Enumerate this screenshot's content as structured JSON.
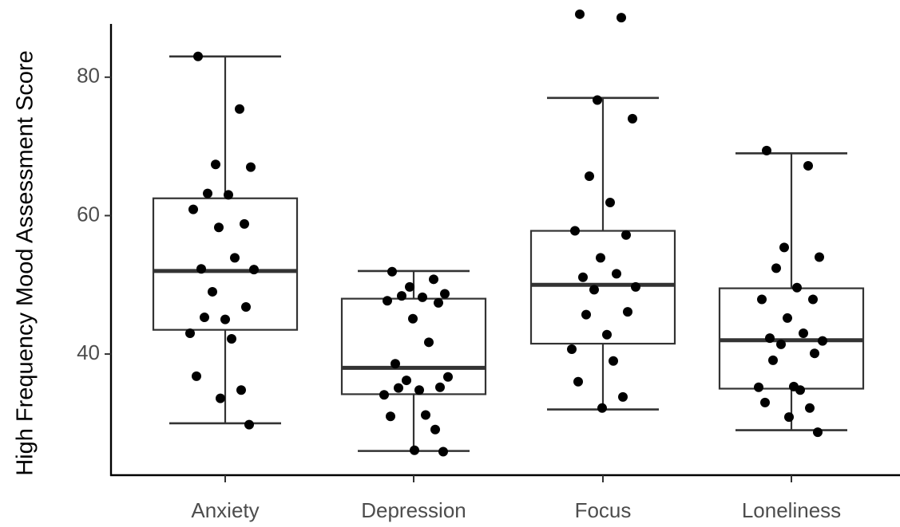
{
  "chart_data": {
    "type": "box",
    "title": "",
    "xlabel": "",
    "ylabel": "High Frequency Mood Assessment Score",
    "ylim": [
      22.5,
      90
    ],
    "yticks": [
      40,
      60,
      80
    ],
    "grid": false,
    "legend": "none",
    "box_color": "#333333",
    "point_color": "#000000",
    "categories": [
      "Anxiety",
      "Depression",
      "Focus",
      "Loneliness"
    ],
    "boxes": [
      {
        "category": "Anxiety",
        "whisker_low": 30,
        "q1": 43.5,
        "median": 52,
        "q3": 62.5,
        "whisker_high": 83
      },
      {
        "category": "Depression",
        "whisker_low": 26,
        "q1": 34.2,
        "median": 38,
        "q3": 48,
        "whisker_high": 52
      },
      {
        "category": "Focus",
        "whisker_low": 32,
        "q1": 41.5,
        "median": 50,
        "q3": 57.8,
        "whisker_high": 77
      },
      {
        "category": "Loneliness",
        "whisker_low": 29,
        "q1": 35,
        "median": 42,
        "q3": 49.5,
        "whisker_high": 69
      }
    ],
    "points": [
      {
        "category": "Anxiety",
        "values": [
          83,
          75.4,
          67.4,
          67,
          63.2,
          63,
          60.9,
          58.8,
          58.3,
          53.9,
          52.3,
          52.2,
          49,
          46.8,
          45.3,
          45,
          43,
          42.2,
          36.8,
          34.8,
          33.6,
          29.8
        ]
      },
      {
        "category": "Depression",
        "values": [
          51.9,
          50.8,
          49.7,
          48.7,
          48.4,
          48.2,
          47.7,
          47.4,
          45.1,
          41.7,
          38.6,
          36.7,
          36.2,
          35.2,
          35.1,
          34.8,
          34.1,
          31.2,
          31,
          29.1,
          26.1,
          25.9
        ]
      },
      {
        "category": "Focus",
        "values": [
          89.1,
          88.6,
          76.7,
          74,
          65.7,
          61.9,
          57.8,
          57.2,
          53.9,
          51.6,
          51.1,
          49.7,
          49.3,
          46.1,
          45.7,
          42.8,
          40.7,
          39,
          36,
          33.8,
          32.2
        ]
      },
      {
        "category": "Loneliness",
        "values": [
          69.4,
          67.2,
          55.4,
          54,
          52.4,
          49.6,
          47.9,
          47.9,
          45.2,
          43,
          42.3,
          41.9,
          41.4,
          40.1,
          39.1,
          35.3,
          35.2,
          34.8,
          33,
          32.2,
          30.9,
          28.7
        ]
      }
    ]
  }
}
